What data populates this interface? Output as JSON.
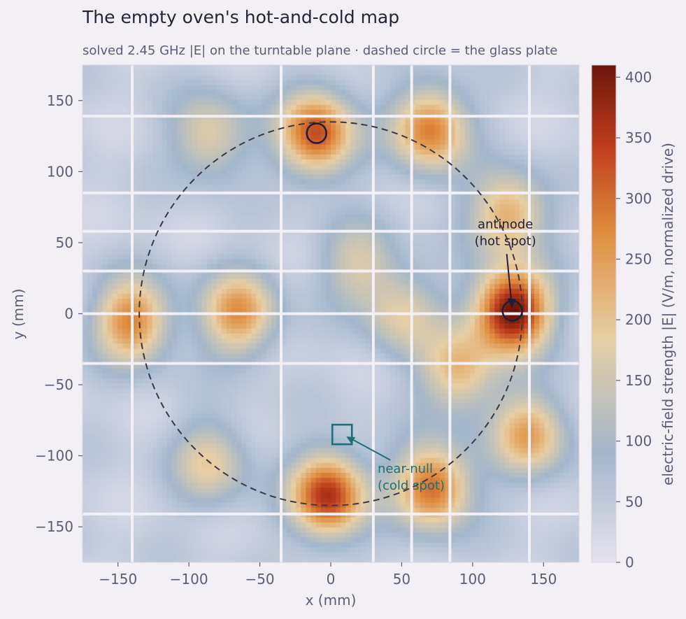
{
  "title": "The empty oven's hot-and-cold map",
  "subtitle": "solved 2.45 GHz |E| on the turntable plane  ·  dashed circle = the glass plate",
  "chart_data": {
    "type": "heatmap",
    "xlabel": "x  (mm)",
    "ylabel": "y  (mm)",
    "xlim": [
      -175,
      175
    ],
    "ylim": [
      -175,
      175
    ],
    "x_ticks": [
      -150,
      -100,
      -50,
      0,
      50,
      100,
      150
    ],
    "y_ticks": [
      -150,
      -100,
      -50,
      0,
      50,
      100,
      150
    ],
    "x_tick_labels": [
      "−150",
      "−100",
      "−50",
      "0",
      "50",
      "100",
      "150"
    ],
    "y_tick_labels": [
      "−150",
      "−100",
      "−50",
      "0",
      "50",
      "100",
      "150"
    ],
    "grid_x": [
      -140,
      -35,
      30,
      57,
      84,
      140
    ],
    "grid_y": [
      139,
      85,
      58,
      30,
      0,
      -35,
      -141
    ],
    "colorbar": {
      "label": "electric-field strength  |E|  (V/m, normalized drive)",
      "range": [
        0,
        410
      ],
      "ticks": [
        0,
        50,
        100,
        150,
        200,
        250,
        300,
        350,
        400
      ],
      "tick_labels": [
        "0",
        "50",
        "100",
        "150",
        "200",
        "250",
        "300",
        "350",
        "400"
      ],
      "colors": [
        "#e6e2ee",
        "#a2b6cb",
        "#e7cfa4",
        "#e08e40",
        "#bd3c1c",
        "#6c1608"
      ]
    },
    "field_peaks": [
      {
        "x": 128,
        "y": 2,
        "value": 410
      },
      {
        "x": -10,
        "y": 127,
        "value": 320
      },
      {
        "x": 70,
        "y": 130,
        "value": 280
      },
      {
        "x": -2,
        "y": -128,
        "value": 350
      },
      {
        "x": 72,
        "y": -122,
        "value": 300
      },
      {
        "x": -140,
        "y": -5,
        "value": 270
      },
      {
        "x": -65,
        "y": 0,
        "value": 250
      },
      {
        "x": 125,
        "y": 70,
        "value": 230
      },
      {
        "x": 140,
        "y": -85,
        "value": 230
      },
      {
        "x": -85,
        "y": 125,
        "value": 170
      },
      {
        "x": -85,
        "y": -105,
        "value": 170
      },
      {
        "x": 20,
        "y": 35,
        "value": 150
      },
      {
        "x": 50,
        "y": 0,
        "value": 160
      },
      {
        "x": 90,
        "y": -40,
        "value": 210
      }
    ],
    "plate": {
      "center": [
        0,
        0
      ],
      "radius": 135
    },
    "annotations": [
      {
        "text_lines": [
          "antinode",
          "(hot spot)"
        ],
        "marker": "circle",
        "x": 128,
        "y": 2,
        "color": "#1f1d3a"
      },
      {
        "text_lines": [
          "near-null",
          "(cold spot)"
        ],
        "marker": "square",
        "x": 8,
        "y": -85,
        "color": "#1f6e78"
      }
    ],
    "extra_marker": {
      "marker": "circle",
      "x": -10,
      "y": 127,
      "color": "#1f1d3a"
    }
  }
}
